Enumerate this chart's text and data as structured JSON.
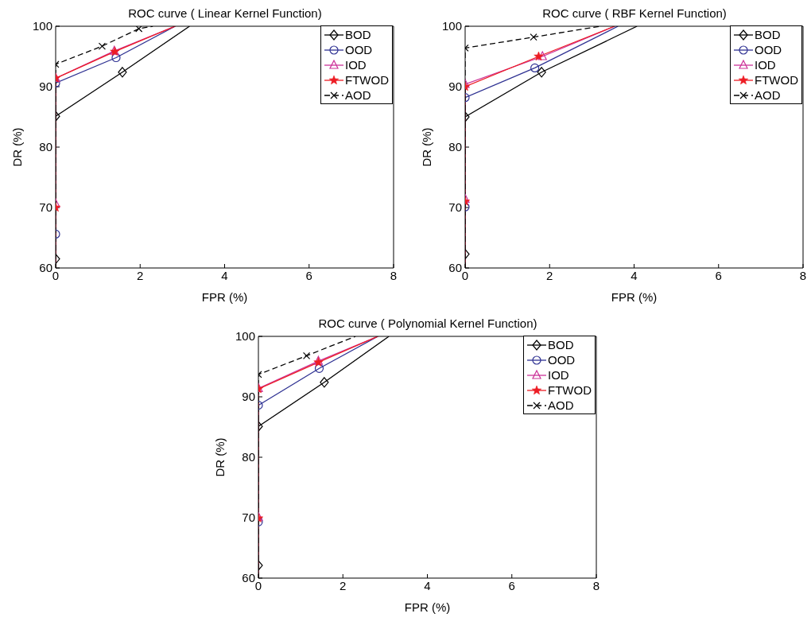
{
  "chart_data": [
    {
      "type": "line",
      "title": "ROC curve ( Linear Kernel Function)",
      "xlabel": "FPR (%)",
      "ylabel": "DR (%)",
      "xlim": [
        0,
        8
      ],
      "xticks": [
        0,
        2,
        4,
        6,
        8
      ],
      "ylim": [
        60,
        100
      ],
      "yticks": [
        60,
        70,
        80,
        90,
        100
      ],
      "legend": "top right",
      "series": [
        {
          "name": "BOD",
          "color": "#000000",
          "marker": "diamond",
          "line_style": "solid",
          "x": [
            0,
            0,
            0,
            1.58,
            3.17
          ],
          "values": [
            60,
            61.5,
            85.1,
            92.4,
            100
          ]
        },
        {
          "name": "OOD",
          "color": "#2e3192",
          "marker": "circle",
          "line_style": "solid",
          "x": [
            0,
            0,
            0,
            1.43,
            2.83
          ],
          "values": [
            60,
            65.6,
            90.6,
            94.8,
            100
          ]
        },
        {
          "name": "IOD",
          "color": "#cc3399",
          "marker": "triangle",
          "line_style": "solid",
          "x": [
            0,
            0,
            0,
            1.39,
            2.83
          ],
          "values": [
            60,
            70.6,
            91.4,
            95.9,
            100
          ]
        },
        {
          "name": "FTWOD",
          "color": "#ed1c24",
          "marker": "star",
          "line_style": "solid",
          "x": [
            0,
            0,
            0,
            1.4,
            2.83
          ],
          "values": [
            60,
            70,
            91.4,
            95.8,
            100
          ]
        },
        {
          "name": "AOD",
          "color": "#000000",
          "marker": "cross",
          "line_style": "dashed",
          "x": [
            0,
            0,
            1.1,
            1.97,
            2.3
          ],
          "values": [
            60,
            93.7,
            96.7,
            99.6,
            100
          ]
        }
      ]
    },
    {
      "type": "line",
      "title": "ROC curve ( RBF Kernel Function)",
      "xlabel": "FPR (%)",
      "ylabel": "DR (%)",
      "xlim": [
        0,
        8
      ],
      "xticks": [
        0,
        2,
        4,
        6,
        8
      ],
      "ylim": [
        60,
        100
      ],
      "yticks": [
        60,
        70,
        80,
        90,
        100
      ],
      "legend": "top right",
      "series": [
        {
          "name": "BOD",
          "color": "#000000",
          "marker": "diamond",
          "line_style": "solid",
          "x": [
            0,
            0,
            0,
            1.81,
            4.07
          ],
          "values": [
            60,
            62.3,
            85,
            92.4,
            100
          ]
        },
        {
          "name": "OOD",
          "color": "#2e3192",
          "marker": "circle",
          "line_style": "solid",
          "x": [
            0,
            0,
            0,
            1.65,
            3.62
          ],
          "values": [
            60,
            70.1,
            88.2,
            93.1,
            100
          ]
        },
        {
          "name": "IOD",
          "color": "#cc3399",
          "marker": "triangle",
          "line_style": "solid",
          "x": [
            0,
            0,
            0,
            1.83,
            3.54
          ],
          "values": [
            60,
            71.4,
            90.4,
            95,
            100
          ]
        },
        {
          "name": "FTWOD",
          "color": "#ed1c24",
          "marker": "star",
          "line_style": "solid",
          "x": [
            0,
            0,
            0,
            1.74,
            3.54
          ],
          "values": [
            60,
            71,
            90,
            95,
            100
          ]
        },
        {
          "name": "AOD",
          "color": "#000000",
          "marker": "cross",
          "line_style": "dashed",
          "x": [
            0,
            0,
            1.62,
            3.2
          ],
          "values": [
            60,
            96.4,
            98.2,
            100
          ]
        }
      ]
    },
    {
      "type": "line",
      "title": "ROC curve ( Polynomial Kernel Function)",
      "xlabel": "FPR (%)",
      "ylabel": "DR (%)",
      "xlim": [
        0,
        8
      ],
      "xticks": [
        0,
        2,
        4,
        6,
        8
      ],
      "ylim": [
        60,
        100
      ],
      "yticks": [
        60,
        70,
        80,
        90,
        100
      ],
      "legend": "top right",
      "series": [
        {
          "name": "BOD",
          "color": "#000000",
          "marker": "diamond",
          "line_style": "solid",
          "x": [
            0,
            0,
            0,
            1.56,
            3.09
          ],
          "values": [
            60,
            62.1,
            85.1,
            92.4,
            100
          ]
        },
        {
          "name": "OOD",
          "color": "#2e3192",
          "marker": "circle",
          "line_style": "solid",
          "x": [
            0,
            0,
            0,
            1.44,
            2.83
          ],
          "values": [
            60,
            69.3,
            88.6,
            94.7,
            100
          ]
        },
        {
          "name": "IOD",
          "color": "#cc3399",
          "marker": "triangle",
          "line_style": "solid",
          "x": [
            0,
            0,
            0,
            1.42,
            2.83
          ],
          "values": [
            60,
            70.1,
            91.4,
            95.9,
            100
          ]
        },
        {
          "name": "FTWOD",
          "color": "#ed1c24",
          "marker": "star",
          "line_style": "solid",
          "x": [
            0,
            0,
            0,
            1.42,
            2.83
          ],
          "values": [
            60,
            69.9,
            91.3,
            95.7,
            100
          ]
        },
        {
          "name": "AOD",
          "color": "#000000",
          "marker": "cross",
          "line_style": "dashed",
          "x": [
            0,
            0,
            1.14,
            2.3
          ],
          "values": [
            60,
            93.7,
            96.8,
            100
          ]
        }
      ]
    }
  ]
}
